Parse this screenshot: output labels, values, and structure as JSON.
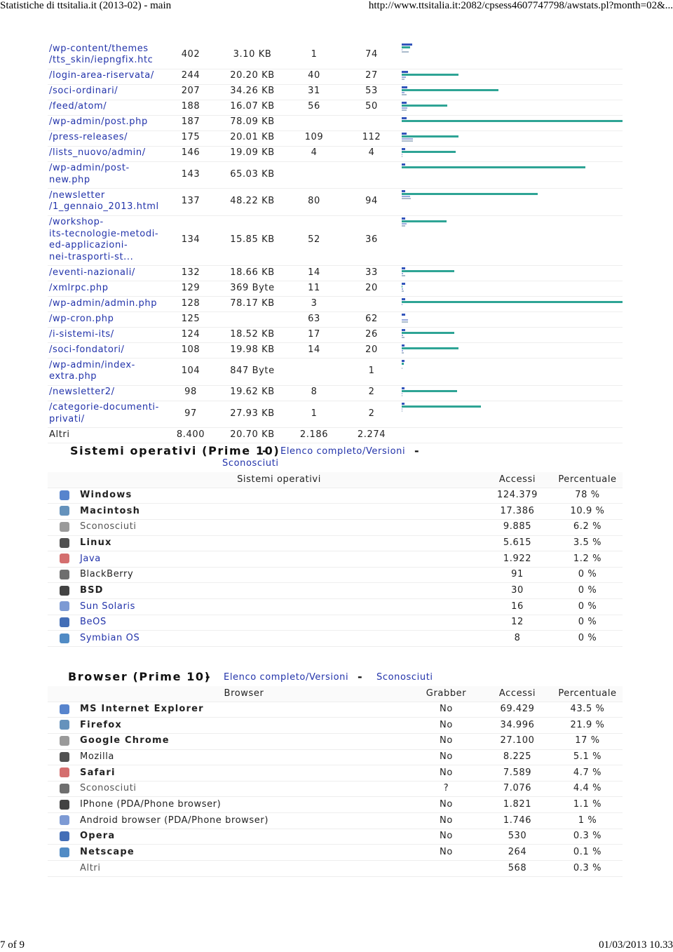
{
  "header": {
    "title": "Statistiche di ttsitalia.it (2013-02) - main",
    "url": "http://www.ttsitalia.it:2082/cpsess4607747798/awstats.pl?month=02&..."
  },
  "footer": {
    "page": "7 of 9",
    "date": "01/03/2013 10.33"
  },
  "pages_table": {
    "rows": [
      {
        "url": [
          "/wp-content/themes",
          "/tts_skin/iepngfix.htc"
        ],
        "viewed": 402,
        "size": {
          "value": 3.1,
          "label": "3.10 KB"
        },
        "entry": 1,
        "exit": 74
      },
      {
        "url": [
          "/login-area-riservata/"
        ],
        "viewed": 244,
        "size": {
          "value": 20.2,
          "label": "20.20 KB"
        },
        "entry": 40,
        "exit": 27
      },
      {
        "url": [
          "/soci-ordinari/"
        ],
        "viewed": 207,
        "size": {
          "value": 34.26,
          "label": "34.26 KB"
        },
        "entry": 31,
        "exit": 53
      },
      {
        "url": [
          "/feed/atom/"
        ],
        "viewed": 188,
        "size": {
          "value": 16.07,
          "label": "16.07 KB"
        },
        "entry": 56,
        "exit": 50
      },
      {
        "url": [
          "/wp-admin/post.php"
        ],
        "viewed": 187,
        "size": {
          "value": 78.09,
          "label": "78.09 KB"
        },
        "entry": null,
        "exit": null
      },
      {
        "url": [
          "/press-releases/"
        ],
        "viewed": 175,
        "size": {
          "value": 20.01,
          "label": "20.01 KB"
        },
        "entry": 109,
        "exit": 112
      },
      {
        "url": [
          "/lists_nuovo/admin/"
        ],
        "viewed": 146,
        "size": {
          "value": 19.09,
          "label": "19.09 KB"
        },
        "entry": 4,
        "exit": 4
      },
      {
        "url": [
          "/wp-admin/post-",
          "new.php"
        ],
        "viewed": 143,
        "size": {
          "value": 65.03,
          "label": "65.03 KB"
        },
        "entry": null,
        "exit": null
      },
      {
        "url": [
          "/newsletter",
          "/1_gennaio_2013.html"
        ],
        "viewed": 137,
        "size": {
          "value": 48.22,
          "label": "48.22 KB"
        },
        "entry": 80,
        "exit": 94
      },
      {
        "url": [
          "/workshop-",
          "its-tecnologie-metodi-",
          "ed-applicazioni-",
          "nei-trasporti-st..."
        ],
        "viewed": 134,
        "size": {
          "value": 15.85,
          "label": "15.85 KB"
        },
        "entry": 52,
        "exit": 36
      },
      {
        "url": [
          "/eventi-nazionali/"
        ],
        "viewed": 132,
        "size": {
          "value": 18.66,
          "label": "18.66 KB"
        },
        "entry": 14,
        "exit": 33
      },
      {
        "url": [
          "/xmlrpc.php"
        ],
        "viewed": 129,
        "size": {
          "value": 0.3604,
          "label": "369 Byte"
        },
        "entry": 11,
        "exit": 20
      },
      {
        "url": [
          "/wp-admin/admin.php"
        ],
        "viewed": 128,
        "size": {
          "value": 78.17,
          "label": "78.17 KB"
        },
        "entry": 3,
        "exit": null
      },
      {
        "url": [
          "/wp-cron.php"
        ],
        "viewed": 125,
        "size": null,
        "entry": 63,
        "exit": 62
      },
      {
        "url": [
          "/i-sistemi-its/"
        ],
        "viewed": 124,
        "size": {
          "value": 18.52,
          "label": "18.52 KB"
        },
        "entry": 17,
        "exit": 26
      },
      {
        "url": [
          "/soci-fondatori/"
        ],
        "viewed": 108,
        "size": {
          "value": 19.98,
          "label": "19.98 KB"
        },
        "entry": 14,
        "exit": 20
      },
      {
        "url": [
          "/wp-admin/index-",
          "extra.php"
        ],
        "viewed": 104,
        "size": {
          "value": 0.8271,
          "label": "847 Byte"
        },
        "entry": null,
        "exit": 1
      },
      {
        "url": [
          "/newsletter2/"
        ],
        "viewed": 98,
        "size": {
          "value": 19.62,
          "label": "19.62 KB"
        },
        "entry": 8,
        "exit": 2
      },
      {
        "url": [
          "/categorie-documenti-",
          "privati/"
        ],
        "viewed": 97,
        "size": {
          "value": 27.93,
          "label": "27.93 KB"
        },
        "entry": 1,
        "exit": 2
      },
      {
        "url": [
          "Altri"
        ],
        "viewed": {
          "value": 8400,
          "label": "8.400"
        },
        "size": {
          "value": 20.7,
          "label": "20.70 KB"
        },
        "entry": {
          "value": 2186,
          "label": "2.186"
        },
        "exit": {
          "value": 2274,
          "label": "2.274"
        },
        "bars": false
      }
    ]
  },
  "os": {
    "title": "Sistemi operativi (Prime 10)",
    "separator": "-",
    "link_full": "Elenco completo/Versioni",
    "link_unknown": "Sconosciuti",
    "columns": [
      "Sistemi operativi",
      "Accessi",
      "Percentuale"
    ],
    "rows": [
      {
        "name": "Windows",
        "style": "bold",
        "hits": {
          "value": 124379,
          "label": "124.379"
        },
        "percent": {
          "value": 78,
          "label": "78 %"
        }
      },
      {
        "name": "Macintosh",
        "style": "bold",
        "hits": {
          "value": 17386,
          "label": "17.386"
        },
        "percent": {
          "value": 10.9,
          "label": "10.9 %"
        }
      },
      {
        "name": "Sconosciuti",
        "style": "plain",
        "hits": {
          "value": 9885,
          "label": "9.885"
        },
        "percent": {
          "value": 6.2,
          "label": "6.2 %"
        }
      },
      {
        "name": "Linux",
        "style": "bold",
        "hits": {
          "value": 5615,
          "label": "5.615"
        },
        "percent": {
          "value": 3.5,
          "label": "3.5 %"
        }
      },
      {
        "name": "Java",
        "style": "link",
        "hits": {
          "value": 1922,
          "label": "1.922"
        },
        "percent": {
          "value": 1.2,
          "label": "1.2 %"
        }
      },
      {
        "name": "BlackBerry",
        "style": "normal",
        "hits": 91,
        "percent": {
          "value": 0,
          "label": "0 %"
        }
      },
      {
        "name": "BSD",
        "style": "bold",
        "hits": 30,
        "percent": {
          "value": 0,
          "label": "0 %"
        }
      },
      {
        "name": "Sun Solaris",
        "style": "link",
        "hits": 16,
        "percent": {
          "value": 0,
          "label": "0 %"
        }
      },
      {
        "name": "BeOS",
        "style": "link",
        "hits": 12,
        "percent": {
          "value": 0,
          "label": "0 %"
        }
      },
      {
        "name": "Symbian OS",
        "style": "link",
        "hits": 8,
        "percent": {
          "value": 0,
          "label": "0 %"
        }
      }
    ]
  },
  "browser": {
    "title": "Browser (Prime 10)",
    "separator": "-",
    "link_full": "Elenco completo/Versioni",
    "link_unknown": "Sconosciuti",
    "columns": [
      "Browser",
      "Grabber",
      "Accessi",
      "Percentuale"
    ],
    "rows": [
      {
        "name": "MS Internet Explorer",
        "style": "bold",
        "grabber": "No",
        "hits": {
          "value": 69429,
          "label": "69.429"
        },
        "percent": {
          "value": 43.5,
          "label": "43.5 %"
        }
      },
      {
        "name": "Firefox",
        "style": "bold",
        "grabber": "No",
        "hits": {
          "value": 34996,
          "label": "34.996"
        },
        "percent": {
          "value": 21.9,
          "label": "21.9 %"
        }
      },
      {
        "name": "Google Chrome",
        "style": "bold",
        "grabber": "No",
        "hits": {
          "value": 27100,
          "label": "27.100"
        },
        "percent": {
          "value": 17,
          "label": "17 %"
        }
      },
      {
        "name": "Mozilla",
        "style": "normal",
        "grabber": "No",
        "hits": {
          "value": 8225,
          "label": "8.225"
        },
        "percent": {
          "value": 5.1,
          "label": "5.1 %"
        }
      },
      {
        "name": "Safari",
        "style": "bold",
        "grabber": "No",
        "hits": {
          "value": 7589,
          "label": "7.589"
        },
        "percent": {
          "value": 4.7,
          "label": "4.7 %"
        }
      },
      {
        "name": "Sconosciuti",
        "style": "plain",
        "grabber": "?",
        "hits": {
          "value": 7076,
          "label": "7.076"
        },
        "percent": {
          "value": 4.4,
          "label": "4.4 %"
        }
      },
      {
        "name": "IPhone (PDA/Phone browser)",
        "style": "normal",
        "grabber": "No",
        "hits": {
          "value": 1821,
          "label": "1.821"
        },
        "percent": {
          "value": 1.1,
          "label": "1.1 %"
        }
      },
      {
        "name": "Android browser (PDA/Phone browser)",
        "style": "normal",
        "grabber": "No",
        "hits": {
          "value": 1746,
          "label": "1.746"
        },
        "percent": {
          "value": 1,
          "label": "1 %"
        }
      },
      {
        "name": "Opera",
        "style": "bold",
        "grabber": "No",
        "hits": 530,
        "percent": {
          "value": 0.3,
          "label": "0.3 %"
        }
      },
      {
        "name": "Netscape",
        "style": "bold",
        "grabber": "No",
        "hits": 264,
        "percent": {
          "value": 0.1,
          "label": "0.1 %"
        }
      },
      {
        "name": "Altri",
        "style": "plain",
        "icon": false,
        "hits": 568,
        "percent": {
          "value": 0.3,
          "label": "0.3 %"
        }
      }
    ]
  }
}
